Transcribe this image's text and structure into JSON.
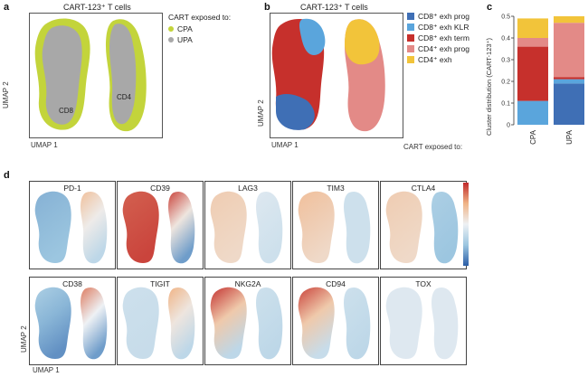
{
  "panel_a": {
    "letter": "a",
    "title": "CART-123⁺ T cells",
    "legend_title": "CART exposed to:",
    "legend": [
      {
        "label": "CPA",
        "color": "#c3d43b"
      },
      {
        "label": "UPA",
        "color": "#a8a8a8"
      }
    ],
    "cluster_labels": [
      "CD8",
      "CD4"
    ],
    "xlabel": "UMAP 1",
    "ylabel": "UMAP 2"
  },
  "panel_b": {
    "letter": "b",
    "title": "CART-123⁺ T cells",
    "legend": [
      {
        "label": "CD8⁺ exh prog",
        "color": "#3f6fb5"
      },
      {
        "label": "CD8⁺ exh KLR",
        "color": "#5aa5dc"
      },
      {
        "label": "CD8⁺ exh term",
        "color": "#c6302c"
      },
      {
        "label": "CD4⁺ exh prog",
        "color": "#e38a87"
      },
      {
        "label": "CD4⁺ exh",
        "color": "#f2c43a"
      }
    ],
    "xlabel": "UMAP 1",
    "ylabel": "UMAP 2"
  },
  "panel_c": {
    "letter": "c",
    "xlabel": "CART exposed to:",
    "ylabel": "Cluster distribution (CART-123⁺)"
  },
  "panel_d": {
    "letter": "d",
    "markers_top": [
      "PD-1",
      "CD39",
      "LAG3",
      "TIM3",
      "CTLA4"
    ],
    "markers_bottom": [
      "CD38",
      "TIGIT",
      "NKG2A",
      "CD94",
      "TOX"
    ],
    "xlabel": "UMAP 1",
    "ylabel": "UMAP 2",
    "colormap": [
      "#2c5fa8",
      "#9cc6e0",
      "#eef1f4",
      "#f0b486",
      "#c0282a"
    ]
  },
  "chart_data": [
    {
      "type": "stacked-bar",
      "categories": [
        "CPA",
        "UPA"
      ],
      "ylim": [
        0,
        0.5
      ],
      "yticks": [
        0,
        0.1,
        0.2,
        0.3,
        0.4,
        0.5
      ],
      "series": [
        {
          "name": "CD8⁺ exh prog",
          "color": "#3f6fb5",
          "values": [
            0,
            0.19
          ]
        },
        {
          "name": "CD8⁺ exh KLR",
          "color": "#5aa5dc",
          "values": [
            0.11,
            0.02
          ]
        },
        {
          "name": "CD8⁺ exh term",
          "color": "#c6302c",
          "values": [
            0.25,
            0.01
          ]
        },
        {
          "name": "CD4⁺ exh prog",
          "color": "#e38a87",
          "values": [
            0.04,
            0.25
          ]
        },
        {
          "name": "CD4⁺ exh",
          "color": "#f2c43a",
          "values": [
            0.09,
            0.03
          ]
        }
      ]
    }
  ]
}
